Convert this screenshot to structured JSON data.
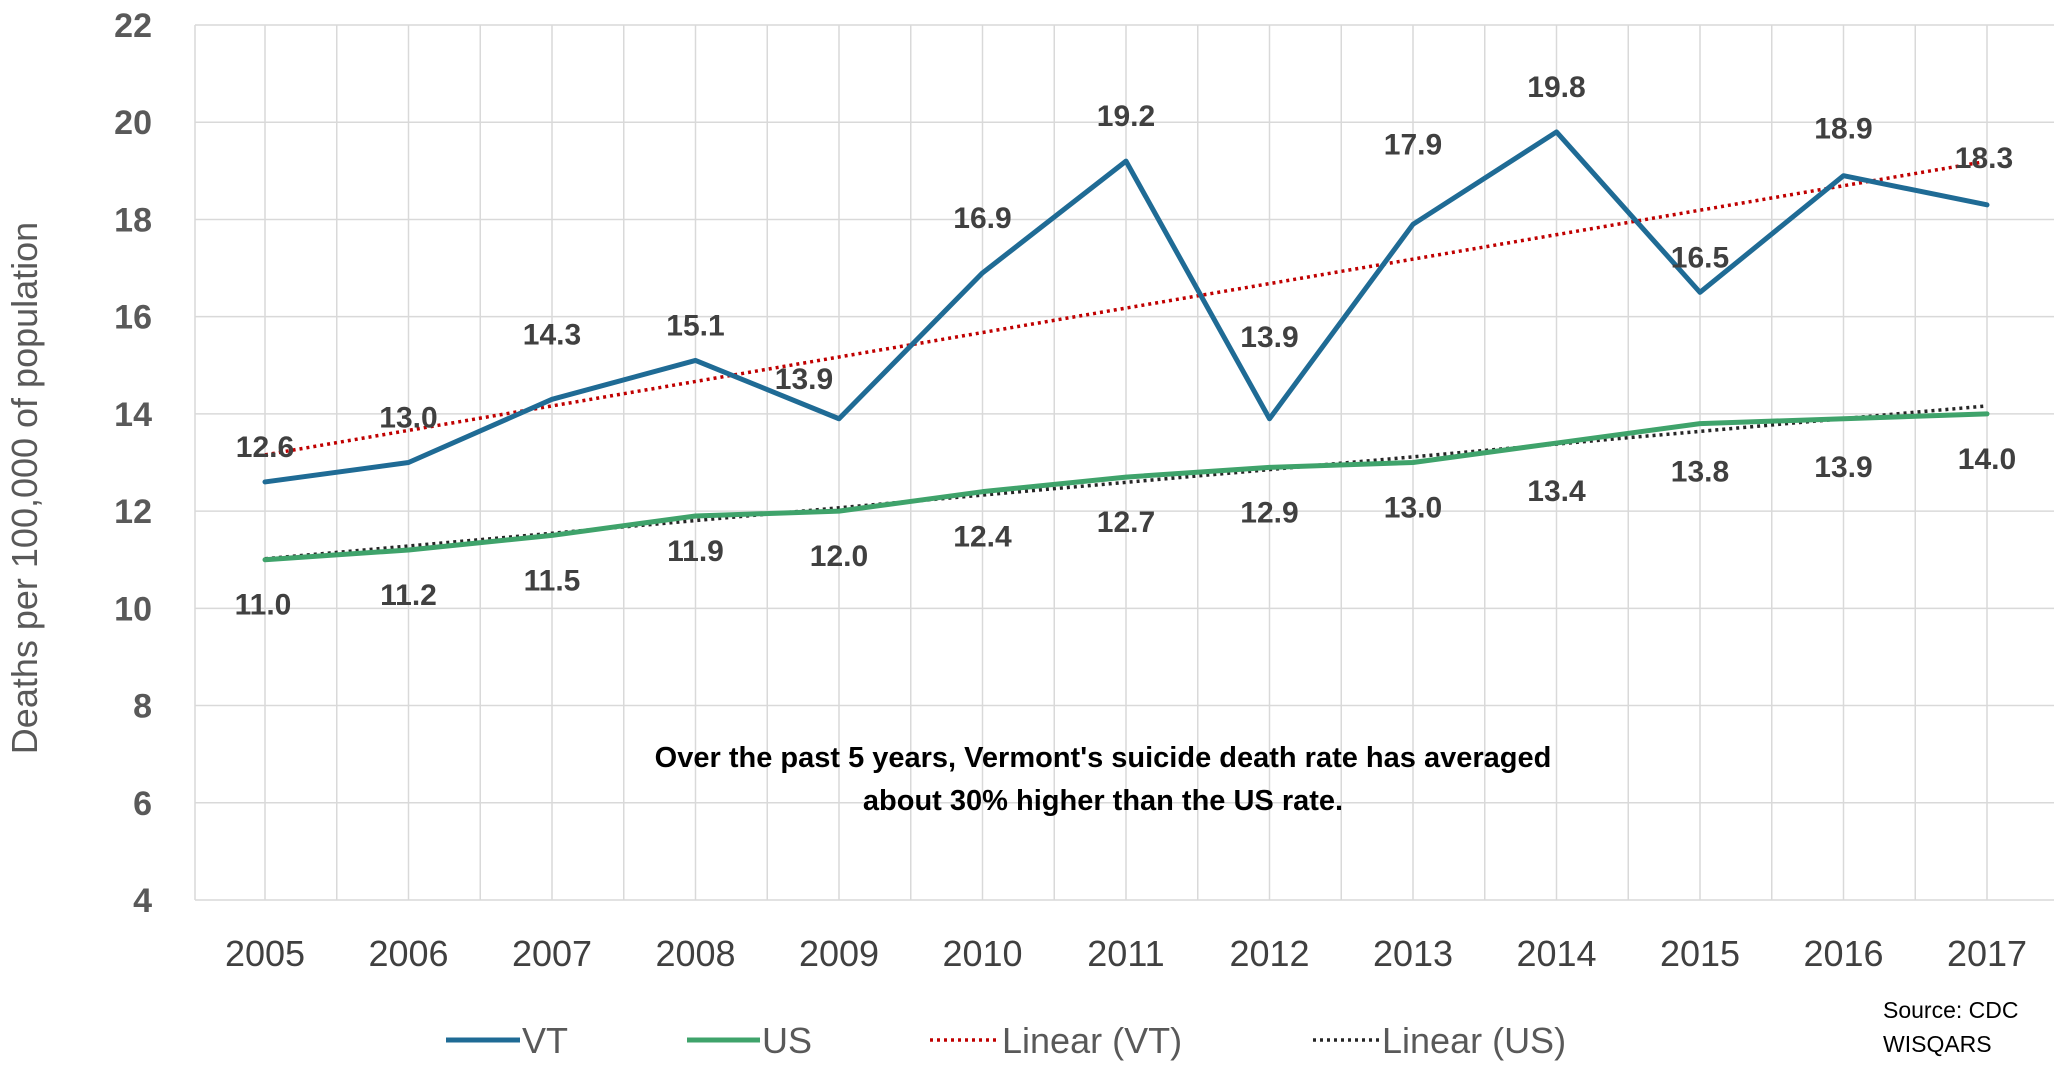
{
  "chart_data": {
    "type": "line",
    "title": "",
    "xlabel": "",
    "ylabel": "Deaths per 100,000 of population",
    "x": [
      "2005",
      "2006",
      "2007",
      "2008",
      "2009",
      "2010",
      "2011",
      "2012",
      "2013",
      "2014",
      "2015",
      "2016",
      "2017"
    ],
    "ylim": [
      4,
      22
    ],
    "yticks": [
      4,
      6,
      8,
      10,
      12,
      14,
      16,
      18,
      20,
      22
    ],
    "grid": true,
    "legend_position": "bottom",
    "series": [
      {
        "name": "VT",
        "color": "#1f6b95",
        "style": "solid",
        "values": [
          12.6,
          13.0,
          14.3,
          15.1,
          13.9,
          16.9,
          19.2,
          13.9,
          17.9,
          19.8,
          16.5,
          18.9,
          18.3
        ],
        "labels": [
          "12.6",
          "13.0",
          "14.3",
          "15.1",
          "13.9",
          "16.9",
          "19.2",
          "13.9",
          "17.9",
          "19.8",
          "16.5",
          "18.9",
          "18.3"
        ]
      },
      {
        "name": "US",
        "color": "#3fa36b",
        "style": "solid",
        "values": [
          11.0,
          11.2,
          11.5,
          11.9,
          12.0,
          12.4,
          12.7,
          12.9,
          13.0,
          13.4,
          13.8,
          13.9,
          14.0
        ],
        "labels": [
          "11.0",
          "11.2",
          "11.5",
          "11.9",
          "12.0",
          "12.4",
          "12.7",
          "12.9",
          "13.0",
          "13.4",
          "13.8",
          "13.9",
          "14.0"
        ]
      }
    ],
    "trendlines": [
      {
        "name": "Linear (VT)",
        "color": "#c00000",
        "style": "dotted",
        "of": "VT"
      },
      {
        "name": "Linear (US)",
        "color": "#262626",
        "style": "dotted",
        "of": "US"
      }
    ],
    "annotation": {
      "line1": "Over the past 5 years, Vermont's suicide death rate has averaged",
      "line2": "about 30% higher than the US rate."
    },
    "source": {
      "line1": "Source:  CDC",
      "line2": "WISQARS"
    }
  }
}
